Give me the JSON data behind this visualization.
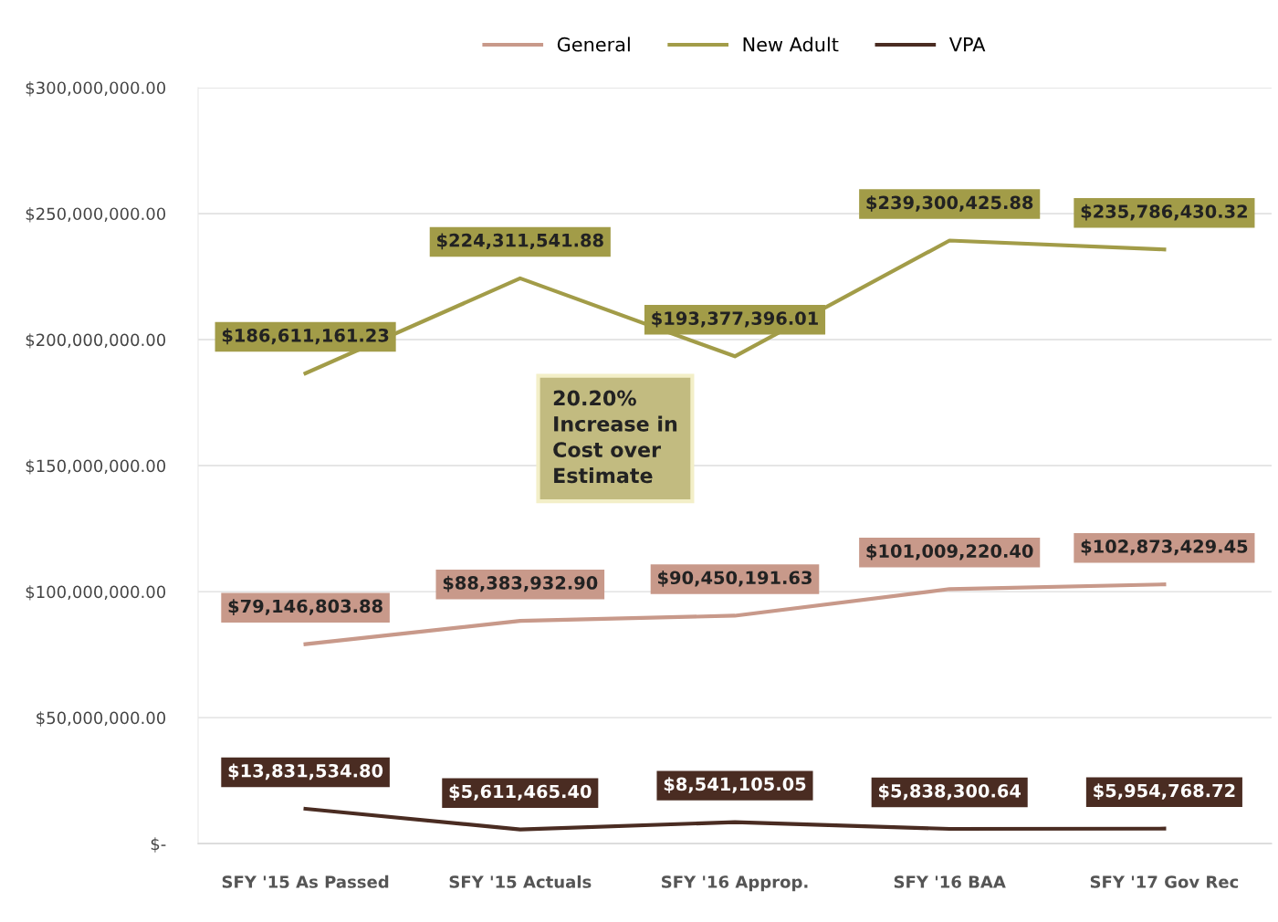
{
  "chart_data": {
    "type": "line",
    "categories": [
      "SFY '15 As Passed",
      "SFY '15 Actuals",
      "SFY '16 Approp.",
      "SFY '16 BAA",
      "SFY '17 Gov Rec"
    ],
    "series": [
      {
        "name": "General",
        "color": "#c8998a",
        "values": [
          79146803.88,
          88383932.9,
          90450191.63,
          101009220.4,
          102873429.45
        ],
        "value_labels": [
          "$79,146,803.88",
          "$88,383,932.90",
          "$90,450,191.63",
          "$101,009,220.40",
          "$102,873,429.45"
        ]
      },
      {
        "name": "New Adult",
        "color": "#a29c48",
        "values": [
          186611161.23,
          224311541.88,
          193377396.01,
          239300425.88,
          235786430.32
        ],
        "value_labels": [
          "$186,611,161.23",
          "$224,311,541.88",
          "$193,377,396.01",
          "$239,300,425.88",
          "$235,786,430.32"
        ]
      },
      {
        "name": "VPA",
        "color": "#4a2c22",
        "values": [
          13831534.8,
          5611465.4,
          8541105.05,
          5838300.64,
          5954768.72
        ],
        "value_labels": [
          "$13,831,534.80",
          "$5,611,465.40",
          "$8,541,105.05",
          "$5,838,300.64",
          "$5,954,768.72"
        ]
      }
    ],
    "ylim": [
      0,
      300000000
    ],
    "yticks": [
      {
        "value": 0,
        "label": "$-"
      },
      {
        "value": 50000000,
        "label": "$50,000,000.00"
      },
      {
        "value": 100000000,
        "label": "$100,000,000.00"
      },
      {
        "value": 150000000,
        "label": "$150,000,000.00"
      },
      {
        "value": 200000000,
        "label": "$200,000,000.00"
      },
      {
        "value": 250000000,
        "label": "$250,000,000.00"
      },
      {
        "value": 300000000,
        "label": "$300,000,000.00"
      }
    ],
    "grid": "y",
    "legend": "top",
    "marker": "none",
    "line_style": "solid",
    "annotations": [
      "20.20%\nIncrease in\nCost over\nEstimate"
    ]
  }
}
